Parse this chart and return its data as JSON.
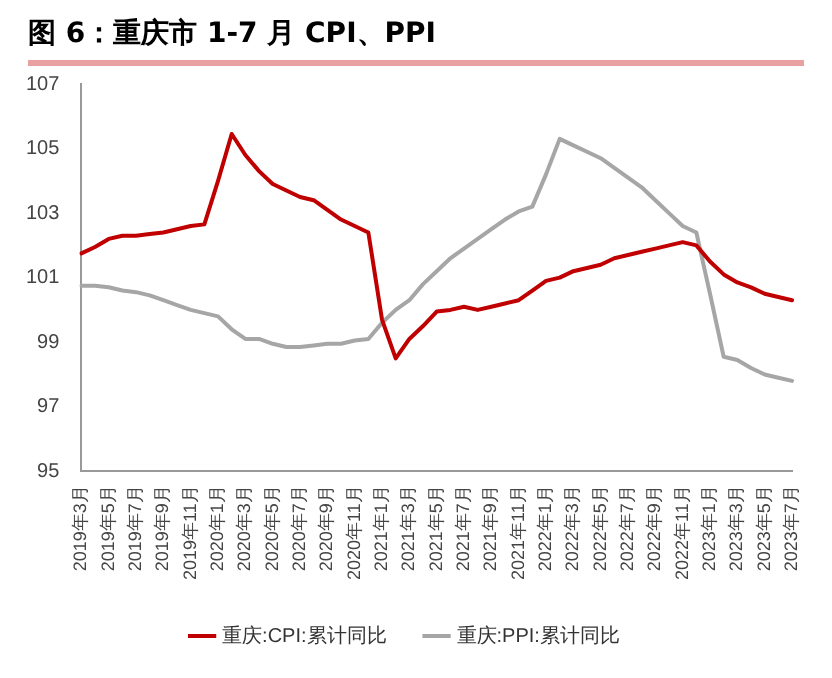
{
  "chart_data": {
    "type": "line",
    "title": "图 6：重庆市 1-7 月 CPI、PPI",
    "categories": [
      "2019年3月",
      null,
      "2019年5月",
      null,
      "2019年7月",
      null,
      "2019年9月",
      null,
      "2019年11月",
      null,
      "2020年1月",
      null,
      "2020年3月",
      null,
      "2020年5月",
      null,
      "2020年7月",
      null,
      "2020年9月",
      null,
      "2020年11月",
      null,
      "2021年1月",
      null,
      "2021年3月",
      null,
      "2021年5月",
      null,
      "2021年7月",
      null,
      "2021年9月",
      null,
      "2021年11月",
      null,
      "2022年1月",
      null,
      "2022年3月",
      null,
      "2022年5月",
      null,
      "2022年7月",
      null,
      "2022年9月",
      null,
      "2022年11月",
      null,
      "2023年1月",
      null,
      "2023年3月",
      null,
      "2023年5月",
      null,
      "2023年7月"
    ],
    "series": [
      {
        "name": "重庆:CPI:累计同比",
        "color": "#c00000",
        "values": [
          101.75,
          101.95,
          102.2,
          102.3,
          102.3,
          102.35,
          102.4,
          102.5,
          102.6,
          102.65,
          104.0,
          105.45,
          104.8,
          104.3,
          103.9,
          103.7,
          103.5,
          103.4,
          103.1,
          102.8,
          102.6,
          102.4,
          99.7,
          98.5,
          99.1,
          99.5,
          99.95,
          100.0,
          100.1,
          100.0,
          100.1,
          100.2,
          100.3,
          100.6,
          100.9,
          101.0,
          101.2,
          101.3,
          101.4,
          101.6,
          101.7,
          101.8,
          101.9,
          102.0,
          102.1,
          102.0,
          101.5,
          101.1,
          100.85,
          100.7,
          100.5,
          100.4,
          100.3
        ]
      },
      {
        "name": "重庆:PPI:累计同比",
        "color": "#a6a6a6",
        "values": [
          100.75,
          100.75,
          100.7,
          100.6,
          100.55,
          100.45,
          100.3,
          100.15,
          100.0,
          99.9,
          99.8,
          99.4,
          99.1,
          99.1,
          98.95,
          98.85,
          98.85,
          98.9,
          98.95,
          98.95,
          99.05,
          99.1,
          99.6,
          100.0,
          100.3,
          100.8,
          101.2,
          101.6,
          101.9,
          102.2,
          102.5,
          102.8,
          103.05,
          103.2,
          104.2,
          105.3,
          105.1,
          104.9,
          104.7,
          104.4,
          104.1,
          103.8,
          103.4,
          103.0,
          102.6,
          102.4,
          100.5,
          98.55,
          98.45,
          98.2,
          98.0,
          97.9,
          97.8
        ]
      }
    ],
    "ylim": [
      95,
      107
    ],
    "yticks": [
      95,
      97,
      99,
      101,
      103,
      105,
      107
    ],
    "grid": false,
    "legend": "bottom",
    "marker": "none",
    "line_style": "solid"
  }
}
